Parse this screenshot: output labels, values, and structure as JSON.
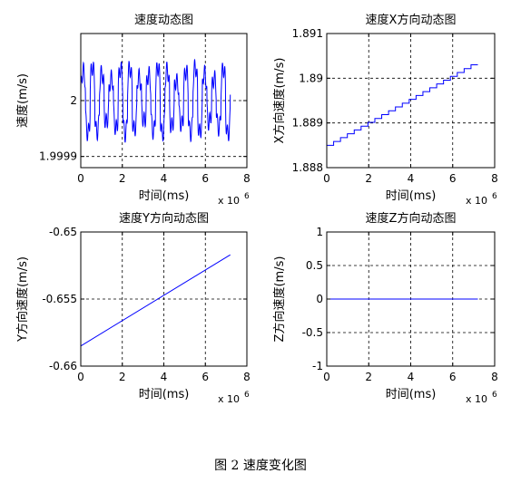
{
  "figure": {
    "caption": "图 2  速度变化图"
  },
  "chart_data": [
    {
      "type": "line",
      "title": "速度动态图",
      "xlabel": "时间(ms)",
      "ylabel": "速度(m/s)",
      "x_exponent_label": "x 10",
      "x_exponent_power": "6",
      "xlim": [
        0,
        8
      ],
      "ylim": [
        1.99988,
        2.00012
      ],
      "xticks": [
        "0",
        "2",
        "4",
        "6",
        "8"
      ],
      "yticks": [
        {
          "v": 1.9999,
          "label": "1.9999"
        },
        {
          "v": 2.0,
          "label": "2"
        }
      ],
      "grid": true,
      "line_color": "#0000ff",
      "series_kind": "oscillating",
      "x_range": [
        0,
        7.2
      ],
      "center": 2.0,
      "amplitude": 6e-05,
      "period": 0.45
    },
    {
      "type": "line",
      "title": "速度X方向动态图",
      "xlabel": "时间(ms)",
      "ylabel": "X方向速度(m/s)",
      "x_exponent_label": "x 10",
      "x_exponent_power": "6",
      "xlim": [
        0,
        8
      ],
      "ylim": [
        1.888,
        1.891
      ],
      "xticks": [
        "0",
        "2",
        "4",
        "6",
        "8"
      ],
      "yticks": [
        {
          "v": 1.888,
          "label": "1.888"
        },
        {
          "v": 1.889,
          "label": "1.889"
        },
        {
          "v": 1.89,
          "label": "1.89"
        },
        {
          "v": 1.891,
          "label": "1.891"
        }
      ],
      "grid": true,
      "line_color": "#0000ff",
      "series_kind": "staircase",
      "x_range": [
        0,
        7.2
      ],
      "y_range": [
        1.8885,
        1.8903
      ],
      "steps": 22
    },
    {
      "type": "line",
      "title": "速度Y方向动态图",
      "xlabel": "时间(ms)",
      "ylabel": "Y方向速度(m/s)",
      "x_exponent_label": "x 10",
      "x_exponent_power": "6",
      "xlim": [
        0,
        8
      ],
      "ylim": [
        -0.66,
        -0.65
      ],
      "xticks": [
        "0",
        "2",
        "4",
        "6",
        "8"
      ],
      "yticks": [
        {
          "v": -0.66,
          "label": "-0.66"
        },
        {
          "v": -0.655,
          "label": "-0.655"
        },
        {
          "v": -0.65,
          "label": "-0.65"
        }
      ],
      "grid": true,
      "line_color": "#0000ff",
      "series_kind": "linear",
      "x": [
        0,
        7.2
      ],
      "y": [
        -0.6585,
        -0.6517
      ]
    },
    {
      "type": "line",
      "title": "速度Z方向动态图",
      "xlabel": "时间(ms)",
      "ylabel": "Z方向速度(m/s)",
      "x_exponent_label": "x 10",
      "x_exponent_power": "6",
      "xlim": [
        0,
        8
      ],
      "ylim": [
        -1,
        1
      ],
      "xticks": [
        "0",
        "2",
        "4",
        "6",
        "8"
      ],
      "yticks": [
        {
          "v": -1,
          "label": "-1"
        },
        {
          "v": -0.5,
          "label": "-0.5"
        },
        {
          "v": 0,
          "label": "0"
        },
        {
          "v": 0.5,
          "label": "0.5"
        },
        {
          "v": 1,
          "label": "1"
        }
      ],
      "grid": true,
      "line_color": "#0000ff",
      "series_kind": "linear",
      "x": [
        0,
        7.2
      ],
      "y": [
        0,
        0
      ]
    }
  ]
}
